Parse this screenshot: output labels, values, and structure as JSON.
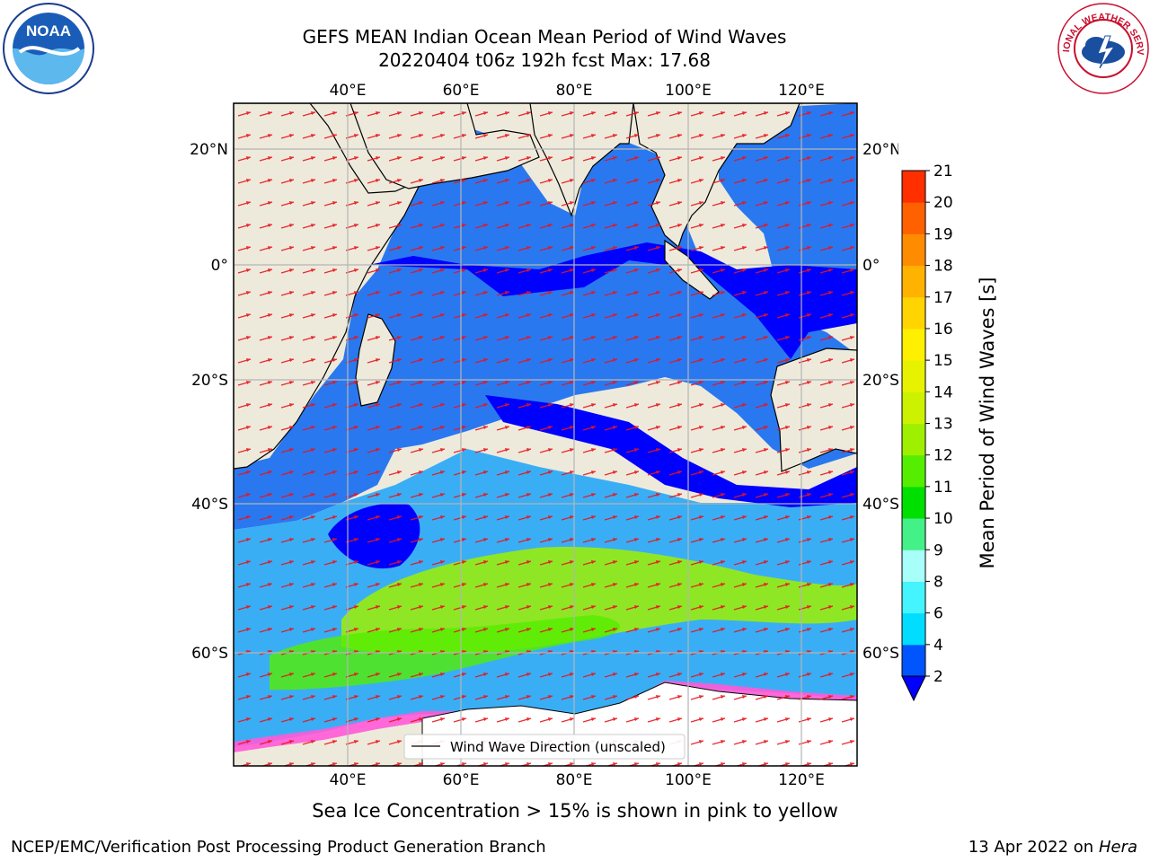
{
  "header": {
    "title_line1": "GEFS MEAN Indian Ocean Mean Period of Wind Waves",
    "title_line2": "20220404 t06z 192h fcst   Max: 17.68"
  },
  "logos": {
    "left": {
      "text": "NOAA",
      "ring_text": "NATIONAL OCEANIC AND ATMOSPHERIC ADMINISTRATION · U.S. DEPARTMENT OF COMMERCE"
    },
    "right": {
      "ring_text": "NATIONAL WEATHER SERVICE"
    }
  },
  "map": {
    "lon_ticks": [
      "40°E",
      "60°E",
      "80°E",
      "100°E",
      "120°E"
    ],
    "lat_ticks_left": [
      "20°N",
      "0°",
      "20°S",
      "40°S",
      "60°S"
    ],
    "lat_ticks_right": [
      "20°N",
      "0°",
      "20°S",
      "40°S",
      "60°S"
    ],
    "legend_label": "Wind Wave Direction (unscaled)",
    "colors": {
      "land": "#eeeadb",
      "vector": "#e8141b",
      "coast": "#000000",
      "grid": "#b5b5b5"
    }
  },
  "colorbar": {
    "label": "Mean Period of Wind Waves [s]",
    "ticks": [
      "2",
      "4",
      "6",
      "8",
      "9",
      "10",
      "11",
      "12",
      "13",
      "14",
      "15",
      "16",
      "17",
      "18",
      "19",
      "20",
      "21"
    ],
    "colors": [
      "#0055ff",
      "#00ddff",
      "#44f4ff",
      "#a8fffa",
      "#44f088",
      "#00e000",
      "#55ee00",
      "#9ff000",
      "#ccf200",
      "#e6f200",
      "#ffef00",
      "#ffd400",
      "#ffb300",
      "#ff8c00",
      "#ff6000",
      "#ff2f00"
    ],
    "extend_color": "#0000ff"
  },
  "footer": {
    "sea_ice_note": "Sea Ice Concentration > 15% is shown in pink to yellow",
    "credit": "NCEP/EMC/Verification Post Processing Product Generation Branch",
    "date": "13 Apr 2022 on",
    "host": "Hera"
  }
}
